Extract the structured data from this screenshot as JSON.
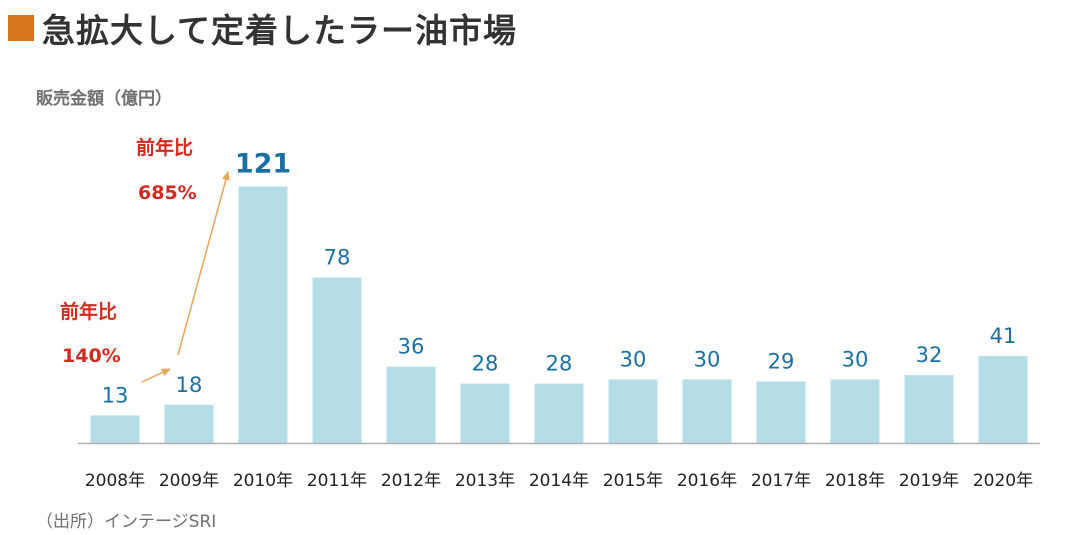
{
  "title": "急拡大して定着したラー油市場",
  "unit_label": "販売金額（億円）",
  "source": "（出所）インテージSRI",
  "colors": {
    "title_square": "#d9751e",
    "bar": "#b5dde8",
    "value_label": "#1a6fa3",
    "yoy": "#d42a1e",
    "arrow": "#e8a65a",
    "axis": "#b0b0b0"
  },
  "annotations": [
    {
      "line1": "前年比",
      "line2": "140%"
    },
    {
      "line1": "前年比",
      "line2": "685%"
    }
  ],
  "chart_data": {
    "type": "bar",
    "categories": [
      "2008年",
      "2009年",
      "2010年",
      "2011年",
      "2012年",
      "2013年",
      "2014年",
      "2015年",
      "2016年",
      "2017年",
      "2018年",
      "2019年",
      "2020年"
    ],
    "values": [
      13,
      18,
      121,
      78,
      36,
      28,
      28,
      30,
      30,
      29,
      30,
      32,
      41
    ],
    "ylabel": "販売金額（億円）",
    "highlight_index": 2,
    "grid": false,
    "legend": "none"
  }
}
